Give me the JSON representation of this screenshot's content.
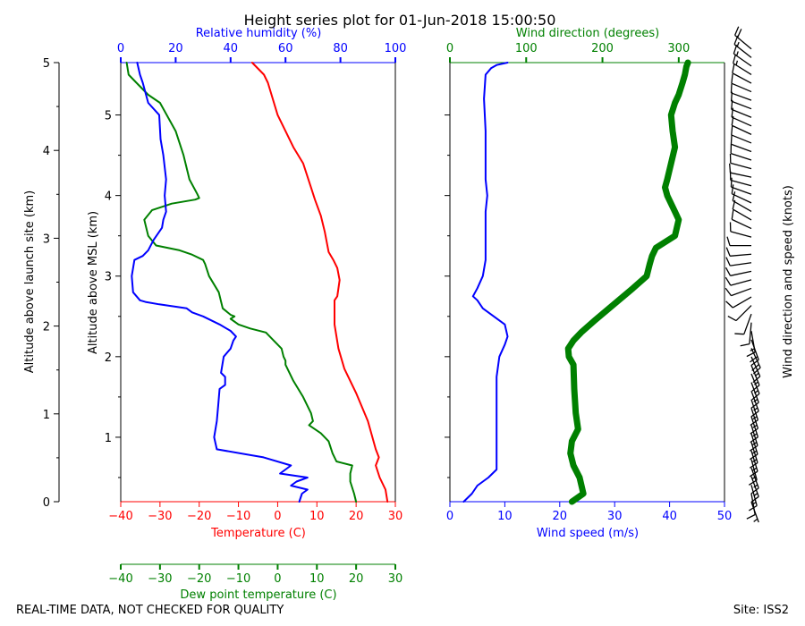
{
  "title": "Height series plot for 01-Jun-2018 15:00:50",
  "footer": {
    "left": "REAL-TIME DATA, NOT CHECKED FOR QUALITY",
    "right": "Site: ISS2"
  },
  "colors": {
    "temperature": "#ff0000",
    "dewpoint": "#008000",
    "humidity": "#0000ff",
    "wind_speed": "#0000ff",
    "wind_dir": "#008000",
    "barbs": "#000000"
  },
  "chart_data": [
    {
      "type": "line",
      "name": "thermo-panel",
      "left_axis": {
        "label": "Altitude above launch site (km)",
        "ticks": [
          0,
          1,
          2,
          3,
          4,
          5
        ],
        "lim": [
          0,
          5
        ]
      },
      "inner_axis": {
        "label": "Altitude above MSL (km)",
        "ticks": [
          1,
          2,
          3,
          4,
          5
        ],
        "lim": [
          0.2,
          5.45
        ]
      },
      "bottom_axis": {
        "label": "Temperature (C)",
        "ticks": [
          -40,
          -30,
          -20,
          -10,
          0,
          10,
          20,
          30
        ],
        "lim": [
          -40,
          30
        ]
      },
      "top_axis": {
        "label": "Relative humidity (%)",
        "ticks": [
          0,
          20,
          40,
          60,
          80,
          100
        ],
        "lim": [
          0,
          100
        ]
      },
      "extra_axis": {
        "label": "Dew point temperature (C)",
        "ticks": [
          -40,
          -30,
          -20,
          -10,
          0,
          10,
          20,
          30
        ],
        "lim": [
          -40,
          30
        ]
      },
      "series": [
        {
          "name": "Temperature",
          "x": [
            28,
            27.5,
            26,
            25,
            25.8,
            25,
            23,
            20,
            17,
            15.5,
            15,
            14.5,
            14.5,
            15.2,
            15.8,
            15.2,
            14.2,
            13,
            12,
            11,
            9.5,
            8.5,
            7.5,
            6.5,
            4,
            2,
            0,
            -2.5,
            -3.5,
            -4.5,
            -5.5,
            -6.5
          ],
          "y": [
            0.0,
            0.15,
            0.3,
            0.45,
            0.55,
            0.65,
            1.0,
            1.35,
            1.65,
            1.9,
            2.05,
            2.2,
            2.5,
            2.55,
            2.75,
            2.9,
            3.0,
            3.1,
            3.35,
            3.55,
            3.75,
            3.9,
            4.05,
            4.2,
            4.4,
            4.6,
            4.8,
            5.2,
            5.3,
            5.35,
            5.4,
            5.45
          ]
        },
        {
          "name": "Dew point",
          "x": [
            20,
            19.5,
            18.5,
            18.5,
            19,
            15,
            14,
            13,
            11,
            8,
            9,
            8.5,
            6.5,
            4,
            2,
            2,
            1.5,
            1,
            -1,
            -3,
            -7,
            -10,
            -12,
            -11,
            -12,
            -14,
            -15,
            -17.5,
            -18.5,
            -19,
            -22,
            -25,
            -31,
            -33,
            -34,
            -32,
            -27,
            -21,
            -20,
            -20.5,
            -22.5,
            -24,
            -26,
            -30,
            -33,
            -36,
            -38,
            -38.5
          ],
          "y": [
            0.0,
            0.1,
            0.25,
            0.35,
            0.45,
            0.5,
            0.6,
            0.75,
            0.85,
            0.95,
            1.0,
            1.1,
            1.3,
            1.5,
            1.7,
            1.75,
            1.8,
            1.9,
            2.0,
            2.1,
            2.15,
            2.2,
            2.27,
            2.3,
            2.32,
            2.4,
            2.6,
            2.8,
            2.95,
            3.0,
            3.07,
            3.12,
            3.18,
            3.3,
            3.5,
            3.62,
            3.7,
            3.75,
            3.77,
            3.82,
            4.0,
            4.3,
            4.6,
            4.95,
            5.05,
            5.2,
            5.3,
            5.45
          ]
        },
        {
          "name": "Relative humidity",
          "x": [
            65,
            66,
            68,
            62,
            64,
            68,
            58,
            62,
            52,
            35,
            34,
            35,
            35.5,
            36,
            38,
            38,
            36.5,
            37.5,
            40,
            41,
            42,
            40,
            36,
            30,
            26,
            24,
            14,
            9,
            7,
            4.5,
            4,
            5,
            8,
            10,
            12,
            13,
            15,
            15.5,
            16.5,
            16,
            16.5,
            15.5,
            14.5,
            14,
            10,
            8,
            7,
            6
          ],
          "y": [
            0.0,
            0.1,
            0.15,
            0.2,
            0.25,
            0.3,
            0.35,
            0.45,
            0.55,
            0.65,
            0.8,
            1.0,
            1.2,
            1.4,
            1.45,
            1.55,
            1.6,
            1.8,
            1.9,
            2.0,
            2.05,
            2.12,
            2.2,
            2.3,
            2.35,
            2.4,
            2.45,
            2.48,
            2.5,
            2.6,
            2.8,
            3.0,
            3.05,
            3.12,
            3.25,
            3.3,
            3.4,
            3.5,
            3.6,
            3.8,
            4.0,
            4.3,
            4.5,
            4.8,
            4.95,
            5.2,
            5.3,
            5.45
          ]
        }
      ]
    },
    {
      "type": "line",
      "name": "wind-panel",
      "bottom_axis": {
        "label": "Wind speed (m/s)",
        "ticks": [
          0,
          10,
          20,
          30,
          40,
          50
        ],
        "lim": [
          0,
          50
        ]
      },
      "top_axis": {
        "label": "Wind direction (degrees)",
        "ticks": [
          0,
          100,
          200,
          300
        ],
        "lim": [
          0,
          360
        ]
      },
      "series": [
        {
          "name": "Wind speed",
          "x": [
            2.5,
            4,
            5,
            7,
            8.5,
            8.5,
            8.5,
            8.5,
            8.5,
            9,
            10,
            10.5,
            10,
            8,
            6,
            5,
            4.2,
            5,
            6,
            6.5,
            6.5,
            6.5,
            6.8,
            6.5,
            6.5,
            6.5,
            6.2,
            6.5,
            7.5,
            8.5,
            10.5
          ],
          "y": [
            0.0,
            0.1,
            0.2,
            0.3,
            0.4,
            0.7,
            1.0,
            1.3,
            1.55,
            1.8,
            1.95,
            2.05,
            2.2,
            2.3,
            2.4,
            2.5,
            2.55,
            2.65,
            2.8,
            3.0,
            3.3,
            3.6,
            3.8,
            4.0,
            4.2,
            4.6,
            5.0,
            5.3,
            5.38,
            5.42,
            5.45
          ]
        },
        {
          "name": "Wind direction",
          "x": [
            160,
            175,
            170,
            162,
            158,
            160,
            168,
            165,
            163,
            162,
            156,
            155,
            162,
            172,
            190,
            215,
            240,
            258,
            262,
            265,
            270,
            295,
            300,
            295,
            290,
            285,
            282,
            285,
            290,
            295,
            292,
            290,
            295,
            300,
            305,
            308,
            310,
            312
          ],
          "y": [
            0.0,
            0.1,
            0.3,
            0.45,
            0.6,
            0.75,
            0.9,
            1.1,
            1.4,
            1.7,
            1.8,
            1.9,
            2.0,
            2.1,
            2.25,
            2.45,
            2.65,
            2.8,
            2.95,
            3.05,
            3.15,
            3.3,
            3.5,
            3.6,
            3.7,
            3.8,
            3.9,
            4.0,
            4.2,
            4.4,
            4.6,
            4.8,
            4.95,
            5.05,
            5.2,
            5.3,
            5.4,
            5.45
          ]
        }
      ]
    },
    {
      "type": "barbs",
      "name": "barb-panel",
      "right_label": "Wind direction and speed (knots)",
      "barbs": [
        {
          "alt": 0.1,
          "dir": 160,
          "kt": 6
        },
        {
          "alt": 0.2,
          "dir": 170,
          "kt": 10
        },
        {
          "alt": 0.3,
          "dir": 165,
          "kt": 15
        },
        {
          "alt": 0.4,
          "dir": 160,
          "kt": 15
        },
        {
          "alt": 0.5,
          "dir": 160,
          "kt": 16
        },
        {
          "alt": 0.6,
          "dir": 165,
          "kt": 16
        },
        {
          "alt": 0.7,
          "dir": 163,
          "kt": 16
        },
        {
          "alt": 0.8,
          "dir": 163,
          "kt": 16
        },
        {
          "alt": 0.9,
          "dir": 163,
          "kt": 16
        },
        {
          "alt": 1.0,
          "dir": 163,
          "kt": 16
        },
        {
          "alt": 1.1,
          "dir": 162,
          "kt": 16
        },
        {
          "alt": 1.2,
          "dir": 162,
          "kt": 16
        },
        {
          "alt": 1.3,
          "dir": 162,
          "kt": 16
        },
        {
          "alt": 1.4,
          "dir": 160,
          "kt": 17
        },
        {
          "alt": 1.5,
          "dir": 160,
          "kt": 17
        },
        {
          "alt": 1.6,
          "dir": 158,
          "kt": 18
        },
        {
          "alt": 1.7,
          "dir": 158,
          "kt": 18
        },
        {
          "alt": 1.8,
          "dir": 156,
          "kt": 18
        },
        {
          "alt": 1.9,
          "dir": 155,
          "kt": 20
        },
        {
          "alt": 2.0,
          "dir": 160,
          "kt": 20
        },
        {
          "alt": 2.1,
          "dir": 170,
          "kt": 15
        },
        {
          "alt": 2.2,
          "dir": 185,
          "kt": 12
        },
        {
          "alt": 2.3,
          "dir": 200,
          "kt": 10
        },
        {
          "alt": 2.4,
          "dir": 225,
          "kt": 10
        },
        {
          "alt": 2.5,
          "dir": 240,
          "kt": 10
        },
        {
          "alt": 2.6,
          "dir": 250,
          "kt": 10
        },
        {
          "alt": 2.7,
          "dir": 255,
          "kt": 11
        },
        {
          "alt": 2.8,
          "dir": 258,
          "kt": 12
        },
        {
          "alt": 2.9,
          "dir": 262,
          "kt": 12
        },
        {
          "alt": 3.0,
          "dir": 265,
          "kt": 12
        },
        {
          "alt": 3.1,
          "dir": 270,
          "kt": 13
        },
        {
          "alt": 3.2,
          "dir": 285,
          "kt": 13
        },
        {
          "alt": 3.3,
          "dir": 295,
          "kt": 13
        },
        {
          "alt": 3.4,
          "dir": 300,
          "kt": 13
        },
        {
          "alt": 3.5,
          "dir": 300,
          "kt": 12
        },
        {
          "alt": 3.6,
          "dir": 295,
          "kt": 12
        },
        {
          "alt": 3.7,
          "dir": 290,
          "kt": 12
        },
        {
          "alt": 3.8,
          "dir": 285,
          "kt": 13
        },
        {
          "alt": 3.9,
          "dir": 282,
          "kt": 13
        },
        {
          "alt": 4.0,
          "dir": 285,
          "kt": 13
        },
        {
          "alt": 4.1,
          "dir": 288,
          "kt": 13
        },
        {
          "alt": 4.2,
          "dir": 290,
          "kt": 13
        },
        {
          "alt": 4.3,
          "dir": 292,
          "kt": 13
        },
        {
          "alt": 4.4,
          "dir": 295,
          "kt": 13
        },
        {
          "alt": 4.5,
          "dir": 294,
          "kt": 13
        },
        {
          "alt": 4.6,
          "dir": 292,
          "kt": 13
        },
        {
          "alt": 4.7,
          "dir": 291,
          "kt": 13
        },
        {
          "alt": 4.8,
          "dir": 290,
          "kt": 14
        },
        {
          "alt": 4.9,
          "dir": 293,
          "kt": 14
        },
        {
          "alt": 5.0,
          "dir": 298,
          "kt": 14
        },
        {
          "alt": 5.1,
          "dir": 302,
          "kt": 15
        },
        {
          "alt": 5.2,
          "dir": 305,
          "kt": 16
        },
        {
          "alt": 5.3,
          "dir": 308,
          "kt": 18
        },
        {
          "alt": 5.4,
          "dir": 310,
          "kt": 20
        }
      ]
    }
  ]
}
